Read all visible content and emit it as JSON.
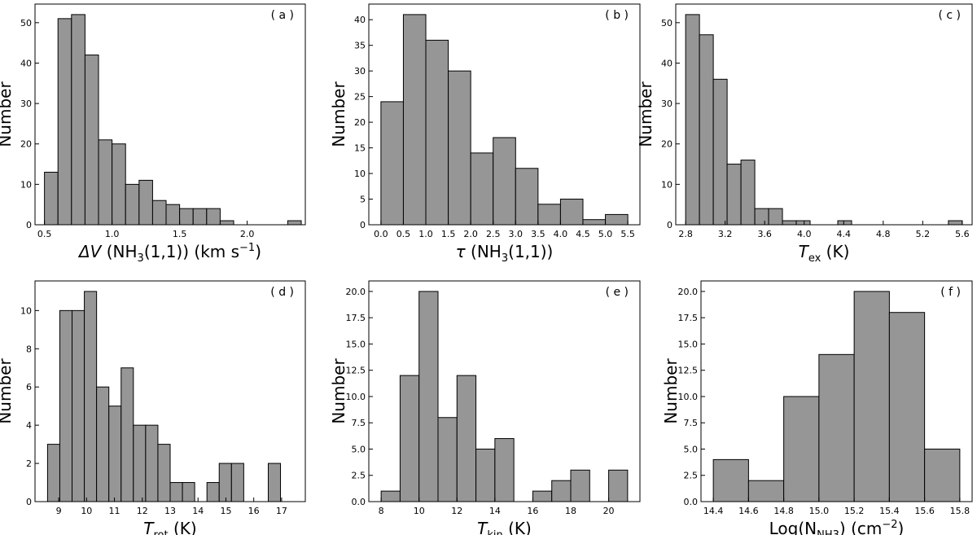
{
  "colors": {
    "bar_fill": "#969696",
    "edge": "#000000",
    "background": "#ffffff"
  },
  "chart_data": [
    {
      "type": "bar",
      "panel_label": "( a )",
      "ylabel": "Number",
      "xlabel": {
        "pre": "ΔV",
        "main": " (NH",
        "sub": "3",
        "post": "(1,1)) (km s",
        "sup": "−1",
        "tail": ")"
      },
      "xlim": [
        0.43,
        2.43
      ],
      "ylim": [
        0,
        54.6
      ],
      "xticks": [
        0.5,
        1.0,
        1.5,
        2.0
      ],
      "xtick_labels": [
        "0.5",
        "1.0",
        "1.5",
        "2.0"
      ],
      "yticks": [
        0,
        10,
        20,
        30,
        40,
        50
      ],
      "ytick_labels": [
        "0",
        "10",
        "20",
        "30",
        "40",
        "50"
      ],
      "bin_edges": [
        0.5,
        0.6,
        0.7,
        0.8,
        0.9,
        1.0,
        1.1,
        1.2,
        1.3,
        1.4,
        1.5,
        1.6,
        1.7,
        1.8,
        1.9,
        2.0,
        2.1,
        2.2,
        2.3,
        2.4
      ],
      "values": [
        13,
        51,
        52,
        42,
        21,
        20,
        10,
        11,
        6,
        5,
        4,
        4,
        4,
        1,
        0,
        0,
        0,
        0,
        1
      ]
    },
    {
      "type": "bar",
      "panel_label": "( b )",
      "ylabel": "Number",
      "xlabel": {
        "pre": "τ",
        "main": " (NH",
        "sub": "3",
        "post": "(1,1))",
        "sup": "",
        "tail": ""
      },
      "xlim": [
        -0.27,
        5.77
      ],
      "ylim": [
        0,
        43.05
      ],
      "xticks": [
        0.0,
        0.5,
        1.0,
        1.5,
        2.0,
        2.5,
        3.0,
        3.5,
        4.0,
        4.5,
        5.0,
        5.5
      ],
      "xtick_labels": [
        "0.0",
        "0.5",
        "1.0",
        "1.5",
        "2.0",
        "2.5",
        "3.0",
        "3.5",
        "4.0",
        "4.5",
        "5.0",
        "5.5"
      ],
      "yticks": [
        0,
        5,
        10,
        15,
        20,
        25,
        30,
        35,
        40
      ],
      "ytick_labels": [
        "0",
        "5",
        "10",
        "15",
        "20",
        "25",
        "30",
        "35",
        "40"
      ],
      "bin_edges": [
        0.0,
        0.5,
        1.0,
        1.5,
        2.0,
        2.5,
        3.0,
        3.5,
        4.0,
        4.5,
        5.0,
        5.5
      ],
      "values": [
        24,
        41,
        36,
        30,
        14,
        17,
        11,
        4,
        5,
        1,
        2
      ]
    },
    {
      "type": "bar",
      "panel_label": "( c )",
      "ylabel": "Number",
      "xlabel": {
        "pre": "T",
        "main": "",
        "sub": "ex",
        "post": " (K)",
        "sup": "",
        "tail": ""
      },
      "xlim": [
        2.7,
        5.7
      ],
      "ylim": [
        0,
        54.6
      ],
      "xticks": [
        2.8,
        3.2,
        3.6,
        4.0,
        4.4,
        4.8,
        5.2,
        5.6
      ],
      "xtick_labels": [
        "2.8",
        "3.2",
        "3.6",
        "4.0",
        "4.4",
        "4.8",
        "5.2",
        "5.6"
      ],
      "yticks": [
        0,
        10,
        20,
        30,
        40,
        50
      ],
      "ytick_labels": [
        "0",
        "10",
        "20",
        "30",
        "40",
        "50"
      ],
      "bin_edges": [
        2.8,
        2.94,
        3.08,
        3.22,
        3.36,
        3.5,
        3.64,
        3.78,
        3.92,
        4.06,
        4.2,
        4.34,
        4.48,
        4.62,
        4.76,
        4.9,
        5.04,
        5.18,
        5.32,
        5.46,
        5.6
      ],
      "values": [
        52,
        47,
        36,
        15,
        16,
        4,
        4,
        1,
        1,
        0,
        0,
        1,
        0,
        0,
        0,
        0,
        0,
        0,
        0,
        1
      ]
    },
    {
      "type": "bar",
      "panel_label": "( d )",
      "ylabel": "Number",
      "xlabel": {
        "pre": "T",
        "main": "",
        "sub": "rot",
        "post": " (K)",
        "sup": "",
        "tail": ""
      },
      "xlim": [
        8.15,
        17.85
      ],
      "ylim": [
        0,
        11.55
      ],
      "xticks": [
        9,
        10,
        11,
        12,
        13,
        14,
        15,
        16,
        17
      ],
      "xtick_labels": [
        "9",
        "10",
        "11",
        "12",
        "13",
        "14",
        "15",
        "16",
        "17"
      ],
      "yticks": [
        0,
        2,
        4,
        6,
        8,
        10
      ],
      "ytick_labels": [
        "0",
        "2",
        "4",
        "6",
        "8",
        "10"
      ],
      "bin_edges": [
        8.6,
        9.04,
        9.48,
        9.92,
        10.36,
        10.8,
        11.24,
        11.68,
        12.12,
        12.56,
        13.0,
        13.44,
        13.88,
        14.32,
        14.76,
        15.2,
        15.64,
        16.08,
        16.52,
        16.96,
        17.4
      ],
      "values": [
        3,
        10,
        10,
        11,
        6,
        5,
        7,
        4,
        4,
        3,
        1,
        1,
        0,
        1,
        2,
        2,
        0,
        0,
        2,
        0
      ]
    },
    {
      "type": "bar",
      "panel_label": "( e )",
      "ylabel": "Number",
      "xlabel": {
        "pre": "T",
        "main": "",
        "sub": "kin",
        "post": " (K)",
        "sup": "",
        "tail": ""
      },
      "xlim": [
        7.35,
        21.65
      ],
      "ylim": [
        0,
        21.0
      ],
      "xticks": [
        8,
        10,
        12,
        14,
        16,
        18,
        20
      ],
      "xtick_labels": [
        "8",
        "10",
        "12",
        "14",
        "16",
        "18",
        "20"
      ],
      "yticks": [
        0.0,
        2.5,
        5.0,
        7.5,
        10.0,
        12.5,
        15.0,
        17.5,
        20.0
      ],
      "ytick_labels": [
        "0.0",
        "2.5",
        "5.0",
        "7.5",
        "10.0",
        "12.5",
        "15.0",
        "17.5",
        "20.0"
      ],
      "bin_edges": [
        8.0,
        9.0,
        10.0,
        11.0,
        12.0,
        13.0,
        14.0,
        15.0,
        16.0,
        17.0,
        18.0,
        19.0,
        20.0,
        21.0
      ],
      "values": [
        1,
        12,
        20,
        8,
        12,
        5,
        6,
        0,
        1,
        2,
        3,
        0,
        3
      ]
    },
    {
      "type": "bar",
      "panel_label": "( f )",
      "ylabel": "Number",
      "xlabel": {
        "pre": "",
        "main": "Log(N",
        "sub": "NH3",
        "post": ") (cm",
        "sup": "−2",
        "tail": ")"
      },
      "xlim": [
        14.33,
        15.87
      ],
      "ylim": [
        0,
        21.0
      ],
      "xticks": [
        14.4,
        14.6,
        14.8,
        15.0,
        15.2,
        15.4,
        15.6,
        15.8
      ],
      "xtick_labels": [
        "14.4",
        "14.6",
        "14.8",
        "15.0",
        "15.2",
        "15.4",
        "15.6",
        "15.8"
      ],
      "yticks": [
        0.0,
        2.5,
        5.0,
        7.5,
        10.0,
        12.5,
        15.0,
        17.5,
        20.0
      ],
      "ytick_labels": [
        "0.0",
        "2.5",
        "5.0",
        "7.5",
        "10.0",
        "12.5",
        "15.0",
        "17.5",
        "20.0"
      ],
      "bin_edges": [
        14.4,
        14.6,
        14.8,
        15.0,
        15.2,
        15.4,
        15.6,
        15.8
      ],
      "values": [
        4,
        2,
        10,
        14,
        20,
        18,
        5
      ]
    }
  ]
}
